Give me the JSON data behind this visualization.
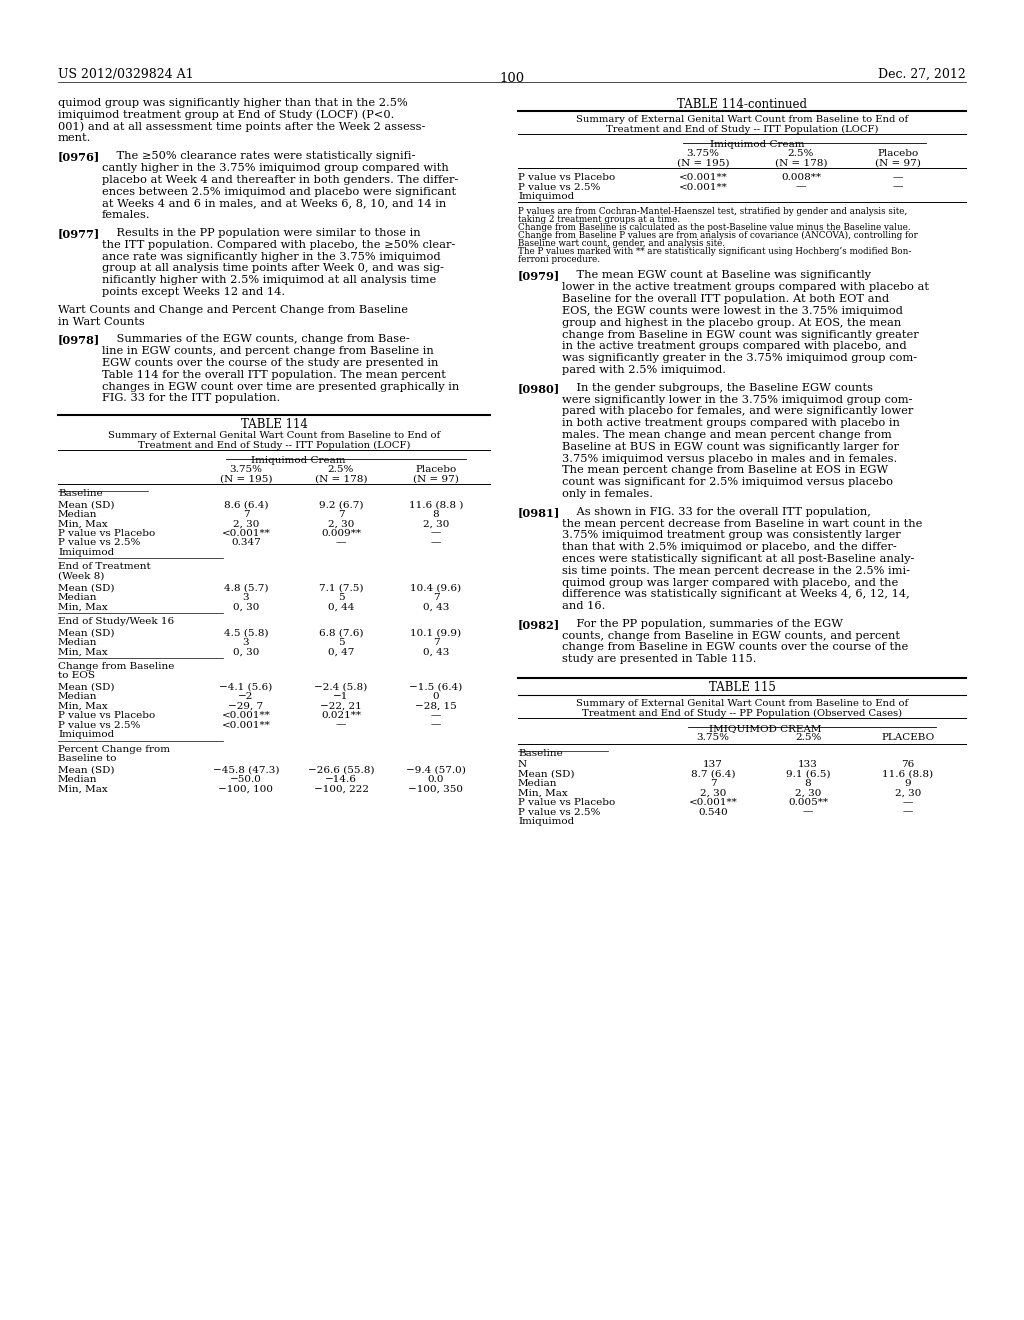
{
  "page_header_left": "US 2012/0329824 A1",
  "page_header_right": "Dec. 27, 2012",
  "page_number": "100",
  "background_color": "#ffffff",
  "left_paragraphs": [
    {
      "type": "body",
      "lines": [
        "quimod group was significantly higher than that in the 2.5%",
        "imiquimod treatment group at End of Study (LOCF) (P<0.",
        "001) and at all assessment time points after the Week 2 assess-",
        "ment."
      ]
    },
    {
      "type": "numbered",
      "tag": "[0976]",
      "lines": [
        "The ≥50% clearance rates were statistically signifi-",
        "cantly higher in the 3.75% imiquimod group compared with",
        "placebo at Week 4 and thereafter in both genders. The differ-",
        "ences between 2.5% imiquimod and placebo were significant",
        "at Weeks 4 and 6 in males, and at Weeks 6, 8, 10, and 14 in",
        "females."
      ]
    },
    {
      "type": "numbered",
      "tag": "[0977]",
      "lines": [
        "Results in the PP population were similar to those in",
        "the ITT population. Compared with placebo, the ≥50% clear-",
        "ance rate was significantly higher in the 3.75% imiquimod",
        "group at all analysis time points after Week 0, and was sig-",
        "nificantly higher with 2.5% imiquimod at all analysis time",
        "points except Weeks 12 and 14."
      ]
    },
    {
      "type": "heading",
      "lines": [
        "Wart Counts and Change and Percent Change from Baseline",
        "in Wart Counts"
      ]
    },
    {
      "type": "numbered",
      "tag": "[0978]",
      "lines": [
        "Summaries of the EGW counts, change from Base-",
        "line in EGW counts, and percent change from Baseline in",
        "EGW counts over the course of the study are presented in",
        "Table 114 for the overall ITT population. The mean percent",
        "changes in EGW count over time are presented graphically in",
        "FIG. 33 for the ITT population."
      ]
    }
  ],
  "table114": {
    "title": "TABLE 114",
    "subtitle_lines": [
      "Summary of External Genital Wart Count from Baseline to End of",
      "Treatment and End of Study -- ITT Population (LOCF)"
    ],
    "group_header": "Imiquimod Cream",
    "col_headers": [
      "3.75%",
      "(N = 195)",
      "2.5%",
      "(N = 178)",
      "Placebo",
      "(N = 97)"
    ],
    "sections": [
      {
        "label": "Baseline",
        "rows": [
          [
            "Mean (SD)",
            "8.6 (6.4)",
            "9.2 (6.7)",
            "11.6 (8.8 )"
          ],
          [
            "Median",
            "7",
            "7",
            "8"
          ],
          [
            "Min, Max",
            "2, 30",
            "2, 30",
            "2, 30"
          ],
          [
            "P value vs Placebo",
            "<0.001**",
            "0.009**",
            "—"
          ],
          [
            "P value vs 2.5%",
            "0.347",
            "—",
            "—"
          ],
          [
            "Imiquimod",
            "",
            "",
            ""
          ]
        ],
        "end_label": [
          "End of Treatment",
          "(Week 8)"
        ]
      },
      {
        "label": "",
        "rows": [
          [
            "Mean (SD)",
            "4.8 (5.7)",
            "7.1 (7.5)",
            "10.4 (9.6)"
          ],
          [
            "Median",
            "3",
            "5",
            "7"
          ],
          [
            "Min, Max",
            "0, 30",
            "0, 44",
            "0, 43"
          ]
        ],
        "end_label": [
          "End of Study/Week 16"
        ]
      },
      {
        "label": "",
        "rows": [
          [
            "Mean (SD)",
            "4.5 (5.8)",
            "6.8 (7.6)",
            "10.1 (9.9)"
          ],
          [
            "Median",
            "3",
            "5",
            "7"
          ],
          [
            "Min, Max",
            "0, 30",
            "0, 47",
            "0, 43"
          ]
        ],
        "end_label": [
          "Change from Baseline",
          "to EOS"
        ]
      },
      {
        "label": "",
        "rows": [
          [
            "Mean (SD)",
            "−4.1 (5.6)",
            "−2.4 (5.8)",
            "−1.5 (6.4)"
          ],
          [
            "Median",
            "−2",
            "−1",
            "0"
          ],
          [
            "Min, Max",
            "−29, 7",
            "−22, 21",
            "−28, 15"
          ],
          [
            "P value vs Placebo",
            "<0.001**",
            "0.021**",
            "—"
          ],
          [
            "P value vs 2.5%",
            "<0.001**",
            "—",
            "—"
          ],
          [
            "Imiquimod",
            "",
            "",
            ""
          ]
        ],
        "end_label": [
          "Percent Change from",
          "Baseline to"
        ]
      },
      {
        "label": "",
        "rows": [
          [
            "Mean (SD)",
            "−45.8 (47.3)",
            "−26.6 (55.8)",
            "−9.4 (57.0)"
          ],
          [
            "Median",
            "−50.0",
            "−14.6",
            "0.0"
          ],
          [
            "Min, Max",
            "−100, 100",
            "−100, 222",
            "−100, 350"
          ]
        ],
        "end_label": []
      }
    ]
  },
  "table114c": {
    "title": "TABLE 114-continued",
    "subtitle_lines": [
      "Summary of External Genital Wart Count from Baseline to End of",
      "Treatment and End of Study -- ITT Population (LOCF)"
    ],
    "group_header": "Imiquimod Cream",
    "col_headers": [
      "3.75%",
      "(N = 195)",
      "2.5%",
      "(N = 178)",
      "Placebo",
      "(N = 97)"
    ],
    "rows": [
      [
        "P value vs Placebo",
        "<0.001**",
        "0.008**",
        "—"
      ],
      [
        "P value vs 2.5%",
        "<0.001**",
        "—",
        "—"
      ],
      [
        "Imiquimod",
        "",
        "",
        ""
      ]
    ],
    "footnotes": [
      "P values are from Cochran-Mantel-Haenszel test, stratified by gender and analysis site,",
      "taking 2 treatment groups at a time.",
      "Change from Baseline is calculated as the post-Baseline value minus the Baseline value.",
      "Change from Baseline P values are from analysis of covariance (ANCOVA), controlling for",
      "Baseline wart count, gender, and analysis site.",
      "The P values marked with ** are statistically significant using Hochberg’s modified Bon-",
      "ferroni procedure."
    ]
  },
  "right_paragraphs": [
    {
      "type": "numbered",
      "tag": "[0979]",
      "lines": [
        "The mean EGW count at Baseline was significantly",
        "lower in the active treatment groups compared with placebo at",
        "Baseline for the overall ITT population. At both EOT and",
        "EOS, the EGW counts were lowest in the 3.75% imiquimod",
        "group and highest in the placebo group. At EOS, the mean",
        "change from Baseline in EGW count was significantly greater",
        "in the active treatment groups compared with placebo, and",
        "was significantly greater in the 3.75% imiquimod group com-",
        "pared with 2.5% imiquimod."
      ]
    },
    {
      "type": "numbered",
      "tag": "[0980]",
      "lines": [
        "In the gender subgroups, the Baseline EGW counts",
        "were significantly lower in the 3.75% imiquimod group com-",
        "pared with placebo for females, and were significantly lower",
        "in both active treatment groups compared with placebo in",
        "males. The mean change and mean percent change from",
        "Baseline at BUS in EGW count was significantly larger for",
        "3.75% imiquimod versus placebo in males and in females.",
        "The mean percent change from Baseline at EOS in EGW",
        "count was significant for 2.5% imiquimod versus placebo",
        "only in females."
      ]
    },
    {
      "type": "numbered",
      "tag": "[0981]",
      "lines": [
        "As shown in FIG. 33 for the overall ITT population,",
        "the mean percent decrease from Baseline in wart count in the",
        "3.75% imiquimod treatment group was consistently larger",
        "than that with 2.5% imiquimod or placebo, and the differ-",
        "ences were statistically significant at all post-Baseline analy-",
        "sis time points. The mean percent decrease in the 2.5% imi-",
        "quimod group was larger compared with placebo, and the",
        "difference was statistically significant at Weeks 4, 6, 12, 14,",
        "and 16."
      ]
    },
    {
      "type": "numbered",
      "tag": "[0982]",
      "lines": [
        "For the PP population, summaries of the EGW",
        "counts, change from Baseline in EGW counts, and percent",
        "change from Baseline in EGW counts over the course of the",
        "study are presented in Table 115."
      ]
    }
  ],
  "table115": {
    "title": "TABLE 115",
    "subtitle_lines": [
      "Summary of External Genital Wart Count from Baseline to End of",
      "Treatment and End of Study -- PP Population (Observed Cases)"
    ],
    "group_header": "IMIQUIMOD CREAM",
    "col_headers": [
      "3.75%",
      "2.5%",
      "PLACEBO"
    ],
    "sections": [
      {
        "label": "Baseline",
        "rows": [
          [
            "N",
            "137",
            "133",
            "76"
          ],
          [
            "Mean (SD)",
            "8.7 (6.4)",
            "9.1 (6.5)",
            "11.6 (8.8)"
          ],
          [
            "Median",
            "7",
            "8",
            "9"
          ],
          [
            "Min, Max",
            "2, 30",
            "2, 30",
            "2, 30"
          ],
          [
            "P value vs Placebo",
            "<0.001**",
            "0.005**",
            "—"
          ],
          [
            "P value vs 2.5%",
            "0.540",
            "—",
            "—"
          ],
          [
            "Imiquimod",
            "",
            "",
            ""
          ]
        ],
        "end_label": []
      }
    ]
  }
}
